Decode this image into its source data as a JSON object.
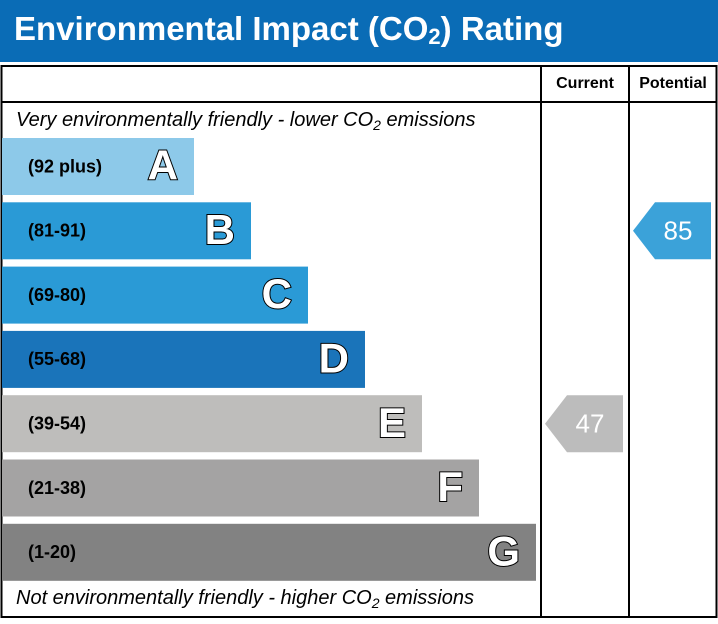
{
  "header": {
    "title": [
      "Environmental Impact (CO",
      "2",
      ") Rating"
    ]
  },
  "columns": {
    "current": "Current",
    "potential": "Potential"
  },
  "notes": {
    "top": [
      "Very environmentally friendly - lower CO",
      "2",
      " emissions"
    ],
    "bottom": [
      "Not environmentally friendly - higher CO",
      "2",
      " emissions"
    ]
  },
  "bands": [
    {
      "range": "(92 plus)",
      "letter": "A",
      "color": "#8dc9e9"
    },
    {
      "range": "(81-91)",
      "letter": "B",
      "color": "#2a9ad6"
    },
    {
      "range": "(69-80)",
      "letter": "C",
      "color": "#2a9ad6"
    },
    {
      "range": "(55-68)",
      "letter": "D",
      "color": "#1a74ba"
    },
    {
      "range": "(39-54)",
      "letter": "E",
      "color": "#bebdbb"
    },
    {
      "range": "(21-38)",
      "letter": "F",
      "color": "#a4a3a3"
    },
    {
      "range": "(1-20)",
      "letter": "G",
      "color": "#828282"
    }
  ],
  "ratings": {
    "current": {
      "value": 47,
      "color": "#bcbcbc"
    },
    "potential": {
      "value": 85,
      "color": "#3ba2d9"
    }
  }
}
